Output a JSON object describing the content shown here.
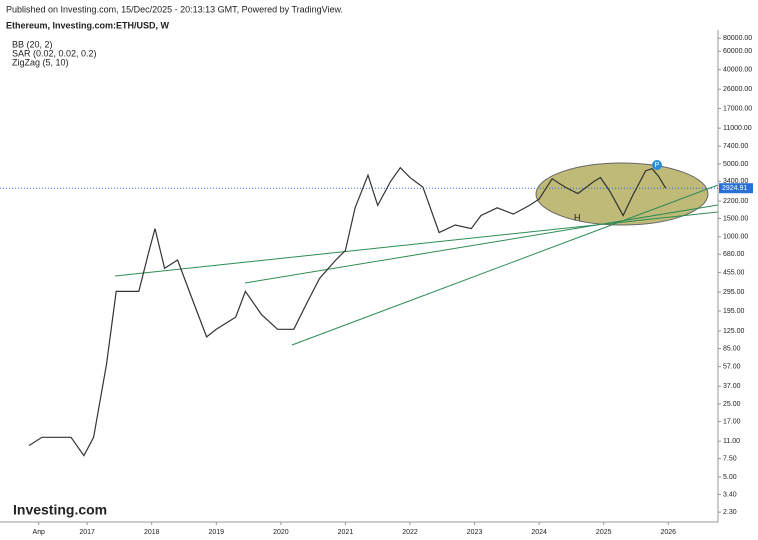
{
  "header": "Published on Investing.com, 15/Dec/2025 - 20:13:13 GMT, Powered by TradingView.",
  "logo": "Investing.com",
  "chart_data": {
    "type": "line",
    "title": "Ethereum, Investing.com:ETH/USD, W",
    "indicators": [
      "BB (20, 2)",
      "SAR (0.02, 0.02, 0.2)",
      "ZigZag (5, 10)"
    ],
    "annotations": [
      "H",
      "P"
    ],
    "log_scale": true,
    "color": "#333333",
    "x": [
      2016.1,
      2016.3,
      2016.5,
      2016.75,
      2016.95,
      2017.1,
      2017.3,
      2017.45,
      2017.6,
      2017.8,
      2017.95,
      2018.05,
      2018.2,
      2018.4,
      2018.6,
      2018.85,
      2019.0,
      2019.3,
      2019.45,
      2019.7,
      2019.95,
      2020.2,
      2020.4,
      2020.6,
      2020.85,
      2021.0,
      2021.15,
      2021.35,
      2021.5,
      2021.7,
      2021.85,
      2022.0,
      2022.2,
      2022.45,
      2022.7,
      2022.95,
      2023.1,
      2023.35,
      2023.6,
      2023.85,
      2024.0,
      2024.2,
      2024.4,
      2024.6,
      2024.85,
      2024.95,
      2025.1,
      2025.3,
      2025.45,
      2025.65,
      2025.75,
      2025.85,
      2025.96
    ],
    "values": [
      10,
      12,
      12,
      12,
      8,
      12,
      60,
      300,
      300,
      300,
      700,
      1200,
      500,
      600,
      280,
      110,
      130,
      170,
      300,
      180,
      130,
      130,
      230,
      400,
      600,
      740,
      1900,
      3900,
      2000,
      3400,
      4600,
      3700,
      3000,
      1100,
      1300,
      1200,
      1600,
      1900,
      1650,
      2000,
      2300,
      3600,
      3000,
      2600,
      3400,
      3700,
      2700,
      1600,
      2500,
      4300,
      4500,
      3800,
      2924.91
    ],
    "last_price": 2924.91,
    "xlim": [
      2015.65,
      2026.77
    ],
    "xticks": [
      {
        "value": 2016.25,
        "label": "Апр"
      },
      2017,
      2018,
      2019,
      2020,
      2021,
      2022,
      2023,
      2024,
      2025,
      2026
    ],
    "ylim": [
      1.85,
      96000
    ],
    "yticks": [
      {
        "value": 80000,
        "label": "80000.00"
      },
      {
        "value": 60000,
        "label": "60000.00"
      },
      {
        "value": 40000,
        "label": "40000.00"
      },
      {
        "value": 26000,
        "label": "26000.00"
      },
      {
        "value": 17000,
        "label": "17000.00"
      },
      {
        "value": 11000,
        "label": "11000.00"
      },
      {
        "value": 7400,
        "label": "7400.00"
      },
      {
        "value": 5000,
        "label": "5000.00"
      },
      {
        "value": 3400,
        "label": "3400.00"
      },
      {
        "value": 2200,
        "label": "2200.00"
      },
      {
        "value": 1500,
        "label": "1500.00"
      },
      {
        "value": 1000,
        "label": "1000.00"
      },
      {
        "value": 680,
        "label": "680.00"
      },
      {
        "value": 455,
        "label": "455.00"
      },
      {
        "value": 295,
        "label": "295.00"
      },
      {
        "value": 195,
        "label": "195.00"
      },
      {
        "value": 125,
        "label": "125.00"
      },
      {
        "value": 85,
        "label": "85.00"
      },
      {
        "value": 57,
        "label": "57.00"
      },
      {
        "value": 37,
        "label": "37.00"
      },
      {
        "value": 25,
        "label": "25.00"
      },
      {
        "value": 17,
        "label": "17.00"
      },
      {
        "value": 11,
        "label": "11.00"
      },
      {
        "value": 7.5,
        "label": "7.50"
      },
      {
        "value": 5,
        "label": "5.00"
      },
      {
        "value": 3.4,
        "label": "3.40"
      },
      {
        "value": 2.3,
        "label": "2.30"
      }
    ]
  }
}
